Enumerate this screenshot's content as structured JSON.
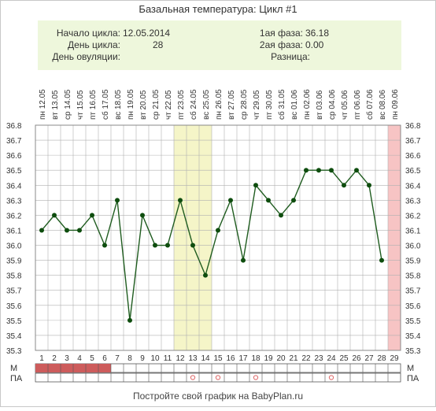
{
  "title": "Базальная температура: Цикл #1",
  "info": {
    "cycle_start_label": "Начало цикла:",
    "cycle_start_value": "12.05.2014",
    "cycle_day_label": "День цикла:",
    "cycle_day_value": "28",
    "ovulation_day_label": "День овуляции:",
    "ovulation_day_value": "",
    "phase1_label": "1ая фаза:",
    "phase1_value": "36.18",
    "phase2_label": "2ая фаза:",
    "phase2_value": "0.00",
    "difference_label": "Разница:",
    "difference_value": ""
  },
  "footer": "Постройте свой график на BabyPlan.ru",
  "row_labels": {
    "m": "М",
    "pa": "ПА"
  },
  "colors": {
    "line": "#1f5c1f",
    "point": "#0e4d0e",
    "grid": "#b0b0b0",
    "highlight": "#f5f5c8",
    "end_band": "#f7c4c4",
    "m_fill": "#cd5c5c",
    "info_bg": "#eef7dc",
    "pa_circle": "#e07070"
  },
  "chart_data": {
    "type": "line",
    "title": "Базальная температура: Цикл #1",
    "x": [
      1,
      2,
      3,
      4,
      5,
      6,
      7,
      8,
      9,
      10,
      11,
      12,
      13,
      14,
      15,
      16,
      17,
      18,
      19,
      20,
      21,
      22,
      23,
      24,
      25,
      26,
      27,
      28,
      29
    ],
    "dates": [
      "12.05",
      "13.05",
      "14.05",
      "15.05",
      "16.05",
      "17.05",
      "18.05",
      "19.05",
      "20.05",
      "21.05",
      "22.05",
      "23.05",
      "24.05",
      "25.05",
      "26.05",
      "27.05",
      "28.05",
      "29.05",
      "30.05",
      "31.05",
      "01.06",
      "02.06",
      "03.06",
      "04.06",
      "05.06",
      "06.06",
      "07.06",
      "08.06",
      "09.06"
    ],
    "weekdays": [
      "пн",
      "вт",
      "ср",
      "чт",
      "пт",
      "сб",
      "вс",
      "пн",
      "вт",
      "ср",
      "чт",
      "пт",
      "сб",
      "вс",
      "пн",
      "вт",
      "ср",
      "чт",
      "пт",
      "сб",
      "вс",
      "пн",
      "вт",
      "ср",
      "чт",
      "пт",
      "сб",
      "вс",
      "пн"
    ],
    "series": [
      {
        "values": [
          36.1,
          36.2,
          36.1,
          36.1,
          36.2,
          36.0,
          36.3,
          35.5,
          36.2,
          36.0,
          36.0,
          36.3,
          36.0,
          35.8,
          36.1,
          36.3,
          35.9,
          36.4,
          36.3,
          36.2,
          36.3,
          36.5,
          36.5,
          36.5,
          36.4,
          36.5,
          36.4,
          35.9,
          null
        ]
      }
    ],
    "ylim": [
      35.3,
      36.8
    ],
    "y_ticks": [
      "35.3",
      "35.4",
      "35.5",
      "35.6",
      "35.7",
      "35.8",
      "35.9",
      "36.0",
      "36.1",
      "36.2",
      "36.3",
      "36.4",
      "36.5",
      "36.6",
      "36.7",
      "36.8"
    ],
    "highlight_days": [
      12,
      14
    ],
    "end_band_day": 29,
    "grid": true,
    "m_days": [
      1,
      2,
      3,
      4,
      5,
      6
    ],
    "pa_days": [
      13,
      15,
      18,
      24
    ]
  }
}
